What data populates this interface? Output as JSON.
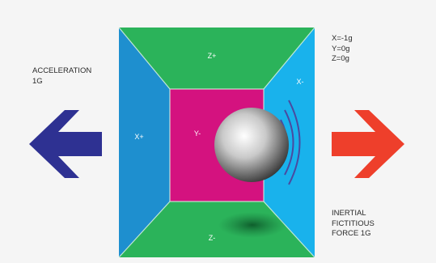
{
  "acceleration": {
    "line1": "ACCELERATION",
    "line2": "1g"
  },
  "readout": {
    "x": "X=-1g",
    "y": "Y=0g",
    "z": "Z=0g"
  },
  "faces": {
    "top": "Z+",
    "bottom": "Z-",
    "left": "X+",
    "right": "X-",
    "back": "Y-"
  },
  "force": {
    "line1": "INERTIAL",
    "line2": "FICTITIOUS",
    "line3": "FORCE 1g"
  },
  "colors": {
    "top_face": "#2bb35a",
    "bottom_face": "#2bb35a",
    "left_face": "#1e8fcf",
    "right_face": "#19b2ec",
    "back_face": "#d4127f",
    "accel_arrow": "#2e3192",
    "force_arrow": "#ee3f2b",
    "ripple": "#4a4aa0"
  }
}
